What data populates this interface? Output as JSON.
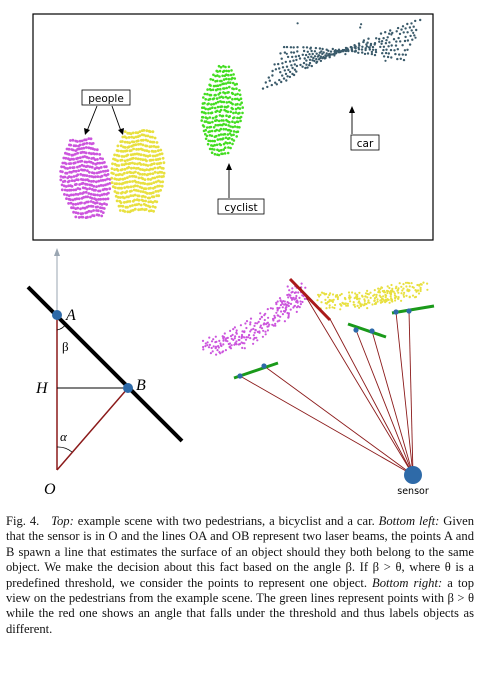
{
  "top_panel": {
    "labels": {
      "people": "people",
      "cyclist": "cyclist",
      "car": "car"
    }
  },
  "bottom_left": {
    "labels": {
      "A": "A",
      "B": "B",
      "H": "H",
      "O": "O",
      "alpha": "α",
      "beta": "β"
    }
  },
  "bottom_right": {
    "labels": {
      "sensor": "sensor"
    }
  },
  "caption": {
    "fig": "Fig. 4.",
    "top_lead": "Top:",
    "top_text": "example scene with two pedestrians, a bicyclist and a car.",
    "bl_lead": "Bottom left:",
    "bl_text": "Given that the sensor is in O and the lines OA and OB represent two laser beams, the points A and B spawn a line that estimates the surface of an object should they both belong to the same object. We make the decision about this fact based on the angle β. If β > θ, where θ is a predefined threshold, we consider the points to represent one object.",
    "br_lead": "Bottom right:",
    "br_text": "a top view on the pedestrians from the example scene. The green lines represent points with β > θ while the red one shows an angle that falls under the threshold and thus labels objects as different."
  },
  "colors": {
    "people_left": "#cc55dd",
    "people_right": "#e8e040",
    "cyclist": "#44dd22",
    "car": "#3a5a6a",
    "beam": "#8b1a1a",
    "point": "#2e6aa8",
    "green_line": "#1a9a1a",
    "red_line": "#aa1a1a"
  }
}
